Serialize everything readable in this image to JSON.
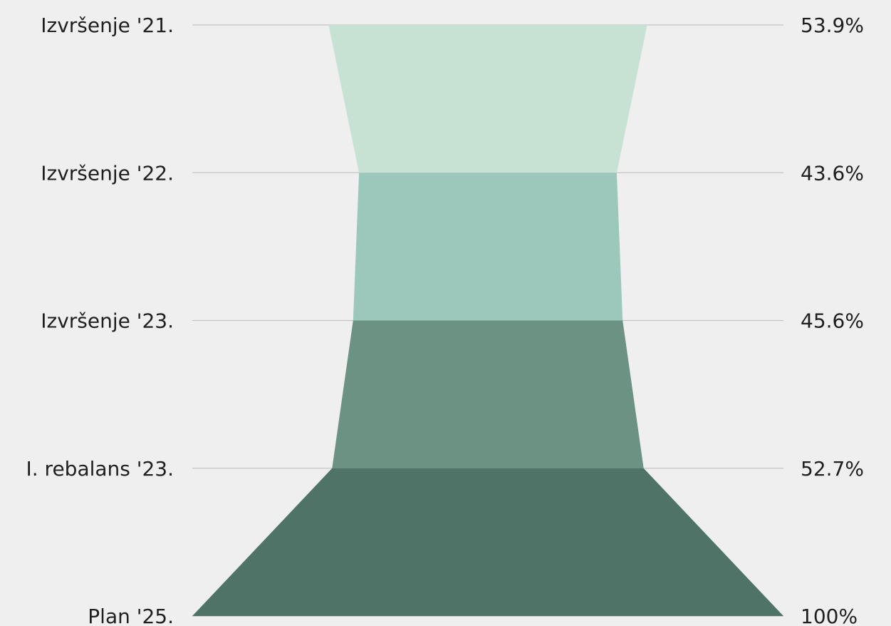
{
  "chart_data": {
    "type": "funnel",
    "title": "",
    "categories": [
      "Izvršenje '21.",
      "Izvršenje '22.",
      "Izvršenje '23.",
      "I. rebalans '23.",
      "Plan '25."
    ],
    "value_labels": [
      "53.9%",
      "43.6%",
      "45.6%",
      "52.7%",
      "100%"
    ],
    "values": [
      53.9,
      43.6,
      45.6,
      52.7,
      100
    ],
    "value_unit": "%",
    "colors": [
      "#c7e2d2",
      "#9bc8ba",
      "#6b9283",
      "#4f7467"
    ],
    "grid": true,
    "background": "#efefef",
    "gridline_color": "#c4c4c4",
    "text_color": "#1f1f1f"
  }
}
